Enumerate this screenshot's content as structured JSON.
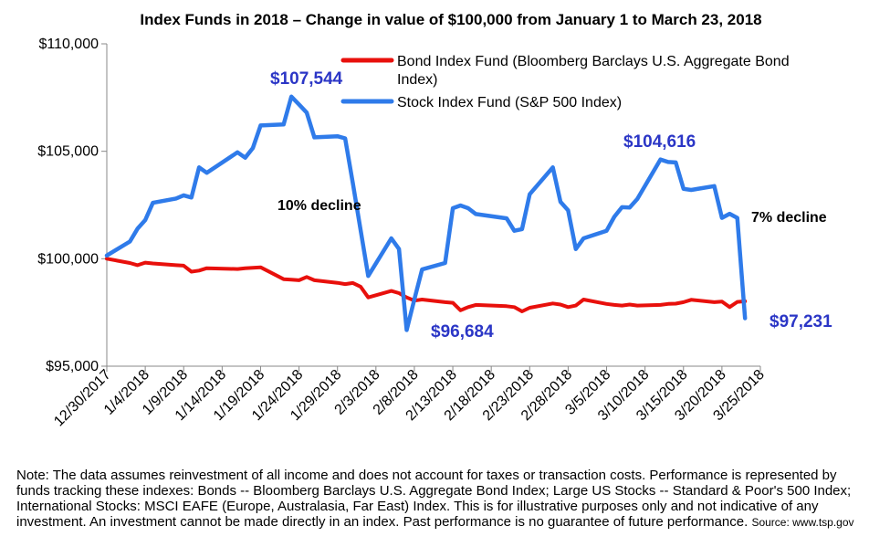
{
  "colors": {
    "bond": "#e8100c",
    "stock": "#2f7bea",
    "annotation": "#2b36c6",
    "axis": "#888888"
  },
  "chart_data": {
    "type": "line",
    "title": "Index Funds in 2018 – Change in value of $100,000 from January 1 to March 23, 2018",
    "xlabel": "",
    "ylabel": "",
    "ylim": [
      95000,
      110000
    ],
    "yticks": [
      95000,
      100000,
      105000,
      110000
    ],
    "ytick_labels": [
      "$95,000",
      "$100,000",
      "$105,000",
      "$110,000"
    ],
    "xlim": [
      "2017-12-30",
      "2018-03-25"
    ],
    "xtick_labels": [
      "12/30/2017",
      "1/4/2018",
      "1/9/2018",
      "1/14/2018",
      "1/19/2018",
      "1/24/2018",
      "1/29/2018",
      "2/3/2018",
      "2/8/2018",
      "2/13/2018",
      "2/18/2018",
      "2/23/2018",
      "2/28/2018",
      "3/5/2018",
      "3/10/2018",
      "3/15/2018",
      "3/20/2018",
      "3/25/2018"
    ],
    "grid": false,
    "legend": "top-right",
    "series": [
      {
        "name": "Bond Index Fund (Bloomberg Barclays U.S. Aggregate Bond Index)",
        "legend_lines": [
          "Bond Index Fund (Bloomberg Barclays U.S. Aggregate Bond",
          "Index)"
        ],
        "color_key": "bond",
        "x": [
          "2017-12-30",
          "2018-01-02",
          "2018-01-03",
          "2018-01-04",
          "2018-01-05",
          "2018-01-08",
          "2018-01-09",
          "2018-01-10",
          "2018-01-11",
          "2018-01-12",
          "2018-01-16",
          "2018-01-17",
          "2018-01-18",
          "2018-01-19",
          "2018-01-22",
          "2018-01-23",
          "2018-01-24",
          "2018-01-25",
          "2018-01-26",
          "2018-01-29",
          "2018-01-30",
          "2018-01-31",
          "2018-02-01",
          "2018-02-02",
          "2018-02-05",
          "2018-02-06",
          "2018-02-07",
          "2018-02-08",
          "2018-02-09",
          "2018-02-12",
          "2018-02-13",
          "2018-02-14",
          "2018-02-15",
          "2018-02-16",
          "2018-02-20",
          "2018-02-21",
          "2018-02-22",
          "2018-02-23",
          "2018-02-26",
          "2018-02-27",
          "2018-02-28",
          "2018-03-01",
          "2018-03-02",
          "2018-03-05",
          "2018-03-06",
          "2018-03-07",
          "2018-03-08",
          "2018-03-09",
          "2018-03-12",
          "2018-03-13",
          "2018-03-14",
          "2018-03-15",
          "2018-03-16",
          "2018-03-19",
          "2018-03-20",
          "2018-03-21",
          "2018-03-22",
          "2018-03-23"
        ],
        "y": [
          100000,
          99800,
          99700,
          99820,
          99780,
          99700,
          99680,
          99400,
          99450,
          99560,
          99520,
          99560,
          99580,
          99600,
          99050,
          99030,
          99000,
          99150,
          99000,
          98880,
          98820,
          98870,
          98700,
          98200,
          98500,
          98400,
          98200,
          98050,
          98100,
          97980,
          97950,
          97600,
          97750,
          97850,
          97790,
          97750,
          97550,
          97720,
          97920,
          97870,
          97750,
          97820,
          98100,
          97900,
          97850,
          97820,
          97870,
          97820,
          97850,
          97900,
          97910,
          97980,
          98090,
          97980,
          98010,
          97750,
          97990,
          98020
        ]
      },
      {
        "name": "Stock Index Fund (S&P 500 Index)",
        "legend_lines": [
          "Stock Index Fund (S&P 500 Index)"
        ],
        "color_key": "stock",
        "x": [
          "2017-12-30",
          "2018-01-02",
          "2018-01-03",
          "2018-01-04",
          "2018-01-05",
          "2018-01-08",
          "2018-01-09",
          "2018-01-10",
          "2018-01-11",
          "2018-01-12",
          "2018-01-16",
          "2018-01-17",
          "2018-01-18",
          "2018-01-19",
          "2018-01-22",
          "2018-01-23",
          "2018-01-24",
          "2018-01-25",
          "2018-01-26",
          "2018-01-29",
          "2018-01-30",
          "2018-01-31",
          "2018-02-01",
          "2018-02-02",
          "2018-02-05",
          "2018-02-06",
          "2018-02-07",
          "2018-02-08",
          "2018-02-09",
          "2018-02-12",
          "2018-02-13",
          "2018-02-14",
          "2018-02-15",
          "2018-02-16",
          "2018-02-20",
          "2018-02-21",
          "2018-02-22",
          "2018-02-23",
          "2018-02-26",
          "2018-02-27",
          "2018-02-28",
          "2018-03-01",
          "2018-03-02",
          "2018-03-05",
          "2018-03-06",
          "2018-03-07",
          "2018-03-08",
          "2018-03-09",
          "2018-03-12",
          "2018-03-13",
          "2018-03-14",
          "2018-03-15",
          "2018-03-16",
          "2018-03-19",
          "2018-03-20",
          "2018-03-21",
          "2018-03-22",
          "2018-03-23"
        ],
        "y": [
          100150,
          100800,
          101400,
          101800,
          102600,
          102800,
          102950,
          102850,
          104250,
          104000,
          104950,
          104700,
          105150,
          106200,
          106250,
          107544,
          107180,
          106800,
          105650,
          105700,
          105600,
          103500,
          101350,
          99200,
          100950,
          100450,
          96684,
          98100,
          99500,
          99800,
          102350,
          102480,
          102350,
          102080,
          101880,
          101300,
          101380,
          103000,
          104250,
          102650,
          102250,
          100450,
          100950,
          101300,
          101950,
          102400,
          102380,
          102780,
          104616,
          104500,
          104480,
          103250,
          103200,
          103380,
          101900,
          102090,
          101900,
          97231
        ]
      }
    ],
    "annotations": [
      {
        "text": "$107,544",
        "style": "value"
      },
      {
        "text": "10% decline",
        "style": "text"
      },
      {
        "text": "$96,684",
        "style": "value"
      },
      {
        "text": "$104,616",
        "style": "value"
      },
      {
        "text": "7% decline",
        "style": "text"
      },
      {
        "text": "$97,231",
        "style": "value"
      }
    ]
  },
  "note": {
    "text": "Note: The data assumes reinvestment of all income and does not account for taxes or transaction costs. Performance is represented by funds tracking these indexes: Bonds -- Bloomberg Barclays U.S. Aggregate Bond Index; Large US Stocks -- Standard & Poor's 500 Index; International Stocks: MSCI EAFE (Europe, Australasia, Far East) Index.  This is for illustrative purposes only and not indicative of any investment. An investment cannot be made directly in an index. Past performance is no guarantee of future performance.",
    "source": "Source: www.tsp.gov"
  }
}
